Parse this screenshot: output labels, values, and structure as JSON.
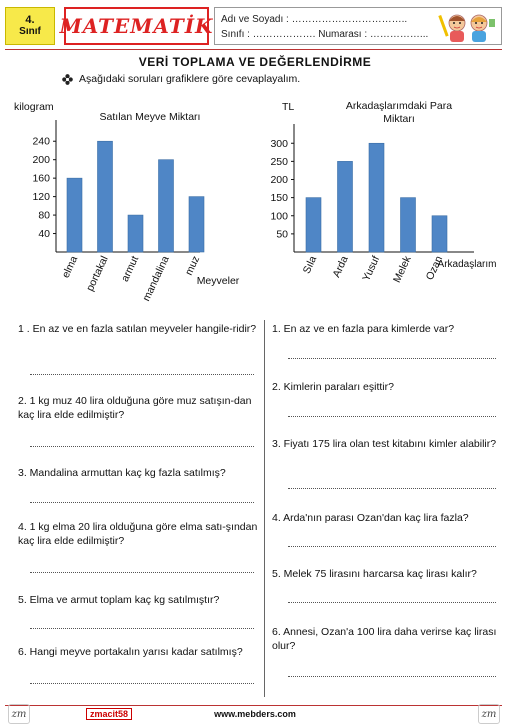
{
  "header": {
    "grade_number": "4.",
    "grade_label": "Sınıf",
    "subject": "MATEMATİK",
    "name_line": "Adı ve Soyadı : ……………………………..",
    "class_line": "Sınıfı : ………………. Numarası : ……………..."
  },
  "section_title": "VERİ TOPLAMA VE DEĞERLENDİRME",
  "instruction": "Aşağıdaki soruları grafiklere göre cevaplayalım.",
  "instruction_icon": "flower-bullet-icon",
  "chart_data": [
    {
      "type": "bar",
      "title": "Satılan Meyve Miktarı",
      "ylabel": "kilogram",
      "xlabel": "Meyveler",
      "categories": [
        "elma",
        "portakal",
        "armut",
        "mandalina",
        "muz"
      ],
      "values": [
        160,
        240,
        80,
        200,
        120
      ],
      "yticks": [
        "40",
        "80",
        "120",
        "160",
        "200",
        "240"
      ],
      "ylim": [
        0,
        260
      ],
      "bar_color": "#4f86c6",
      "grid": false
    },
    {
      "type": "bar",
      "title": "Arkadaşlarımdaki Para Miktarı",
      "ylabel": "TL",
      "xlabel": "Arkadaşlarım",
      "categories": [
        "Sıla",
        "Arda",
        "Yusuf",
        "Melek",
        "Ozan"
      ],
      "values": [
        150,
        250,
        300,
        150,
        100
      ],
      "yticks": [
        "50",
        "100",
        "150",
        "200",
        "250",
        "300"
      ],
      "ylim": [
        0,
        320
      ],
      "bar_color": "#4f86c6",
      "grid": false
    }
  ],
  "questions_left": [
    "1 . En az ve en fazla satılan meyveler hangile-ridir?",
    "2. 1 kg muz 40 lira olduğuna göre muz satışın-dan kaç lira elde edilmiştir?",
    "3. Mandalina armuttan kaç kg fazla satılmış?",
    "4. 1 kg elma 20 lira olduğuna göre elma satı-şından kaç lira elde edilmiştir?",
    "5. Elma ve armut toplam kaç kg satılmıştır?",
    "6. Hangi meyve portakalın yarısı kadar satılmış?"
  ],
  "questions_right": [
    "1. En az ve en fazla para kimlerde var?",
    "2. Kimlerin paraları eşittir?",
    "3. Fiyatı 175 lira olan test kitabını kimler alabilir?",
    "4. Arda'nın parası Ozan'dan kaç lira fazla?",
    "5. Melek 75 lirasını harcarsa kaç lirası kalır?",
    "6. Annesi, Ozan'a 100 lira daha verirse kaç lirası olur?"
  ],
  "footer": {
    "logo_left": "zm",
    "code": "zmacit58",
    "site": "www.mebders.com",
    "logo_right": "zm"
  }
}
